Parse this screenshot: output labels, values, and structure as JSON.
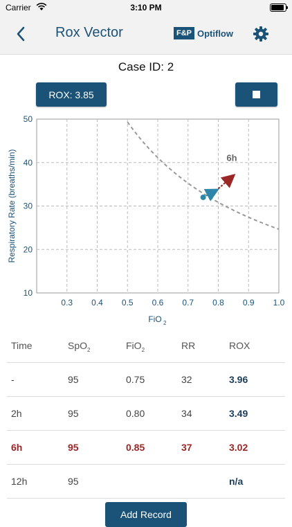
{
  "status": {
    "carrier": "Carrier",
    "time": "3:10 PM"
  },
  "nav": {
    "title": "Rox Vector",
    "brand_mark": "F&P",
    "brand_name": "Optiflow"
  },
  "case": {
    "label": "Case ID: 2"
  },
  "rox_button": {
    "label": "ROX: 3.85"
  },
  "colors": {
    "primary": "#1b5378",
    "highlight": "#9b2626",
    "point": "#2e87a8",
    "arrow": "#9b2626"
  },
  "chart_data": {
    "type": "scatter",
    "xlabel_main": "FiO",
    "xlabel_sub": "2",
    "ylabel": "Respiratory Rate (breaths/min)",
    "xlim": [
      0.2,
      1.0
    ],
    "ylim": [
      10,
      50
    ],
    "x_ticks": [
      "0.3",
      "0.4",
      "0.5",
      "0.6",
      "0.7",
      "0.8",
      "0.9",
      "1.0"
    ],
    "y_ticks": [
      "10",
      "20",
      "30",
      "40",
      "50"
    ],
    "curve": {
      "rox": 3.85,
      "style": "dashed"
    },
    "points": [
      {
        "x": 0.75,
        "y": 32,
        "label": ""
      },
      {
        "x": 0.8,
        "y": 34,
        "label": ""
      },
      {
        "x": 0.85,
        "y": 37,
        "label": "6h"
      }
    ],
    "grid": true
  },
  "table": {
    "headers": [
      {
        "main": "Time",
        "sub": ""
      },
      {
        "main": "SpO",
        "sub": "2"
      },
      {
        "main": "FiO",
        "sub": "2"
      },
      {
        "main": "RR",
        "sub": ""
      },
      {
        "main": "ROX",
        "sub": ""
      }
    ],
    "rows": [
      {
        "time": "-",
        "spo2": "95",
        "fio2": "0.75",
        "rr": "32",
        "rox": "3.96",
        "highlight": false
      },
      {
        "time": "2h",
        "spo2": "95",
        "fio2": "0.80",
        "rr": "34",
        "rox": "3.49",
        "highlight": false
      },
      {
        "time": "6h",
        "spo2": "95",
        "fio2": "0.85",
        "rr": "37",
        "rox": "3.02",
        "highlight": true
      },
      {
        "time": "12h",
        "spo2": "95",
        "fio2": "",
        "rr": "",
        "rox": "n/a",
        "highlight": false
      }
    ]
  },
  "add_record": {
    "label": "Add Record"
  }
}
